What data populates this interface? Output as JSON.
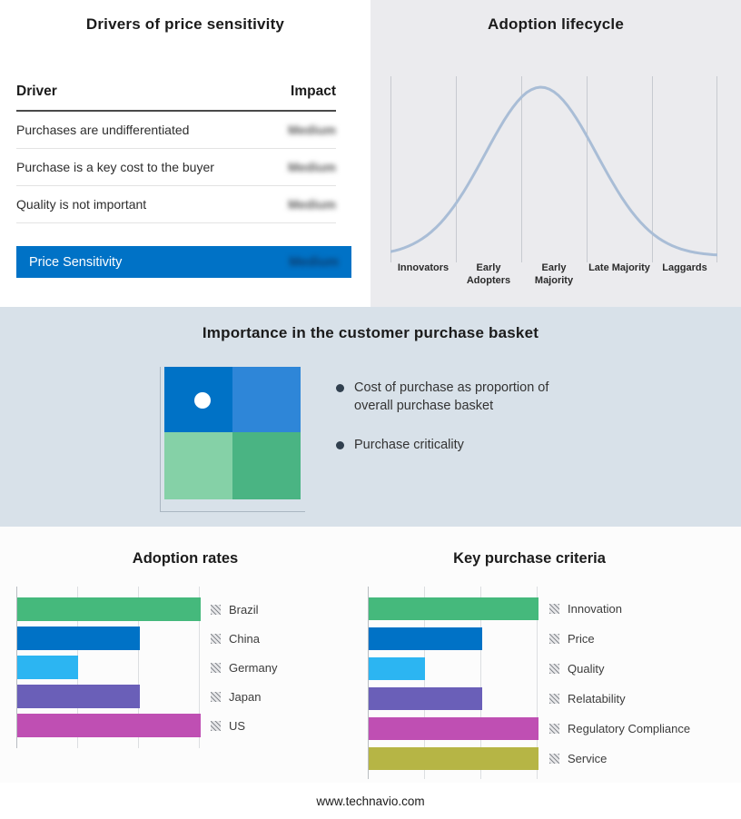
{
  "page": {
    "footer": "www.technavio.com"
  },
  "drivers_panel": {
    "title": "Drivers of price sensitivity",
    "columns": {
      "driver": "Driver",
      "impact": "Impact"
    },
    "rows": [
      {
        "driver": "Purchases are undifferentiated",
        "impact": "Medium",
        "redacted": true
      },
      {
        "driver": "Purchase is a key cost to the buyer",
        "impact": "Medium",
        "redacted": true
      },
      {
        "driver": "Quality is not important",
        "impact": "Medium",
        "redacted": true
      }
    ],
    "summary": {
      "label": "Price Sensitivity",
      "impact": "Medium",
      "redacted": true
    },
    "accent_color": "#0072c6"
  },
  "basket_section": {
    "title": "Importance in the customer purchase basket",
    "bullets": [
      "Cost of purchase as proportion of overall purchase basket",
      "Purchase criticality"
    ],
    "quadrant_colors": {
      "top_left": "#0072c6",
      "top_right": "#2e86d8",
      "bottom_left": "#85d1a7",
      "bottom_right": "#4ab483"
    }
  },
  "chart_data": [
    {
      "type": "bar",
      "title": "Adoption rates",
      "orientation": "horizontal",
      "categories": [
        "Brazil",
        "China",
        "Germany",
        "Japan",
        "US"
      ],
      "values": [
        3,
        2,
        1,
        2,
        3
      ],
      "xlim": [
        0,
        3
      ],
      "colors": [
        "#45b97c",
        "#0072c6",
        "#2cb5f2",
        "#6a5fb8",
        "#bf4fb3"
      ],
      "legend_position": "right",
      "grid": true
    },
    {
      "type": "bar",
      "title": "Key purchase criteria",
      "orientation": "horizontal",
      "categories": [
        "Innovation",
        "Price",
        "Quality",
        "Relatability",
        "Regulatory Compliance",
        "Service"
      ],
      "values": [
        3,
        2,
        1,
        2,
        3,
        3
      ],
      "xlim": [
        0,
        3
      ],
      "colors": [
        "#45b97c",
        "#0072c6",
        "#2cb5f2",
        "#6a5fb8",
        "#bf4fb3",
        "#b6b545"
      ],
      "legend_position": "right",
      "grid": true
    },
    {
      "type": "area",
      "title": "Adoption lifecycle",
      "categories": [
        "Innovators",
        "Early Adopters",
        "Early Majority",
        "Late Majority",
        "Laggards"
      ],
      "curve": {
        "shape": "bell",
        "peak_position": 0.46,
        "sigma": 0.17
      },
      "line_color": "#a9bdd6",
      "grid": true
    }
  ]
}
